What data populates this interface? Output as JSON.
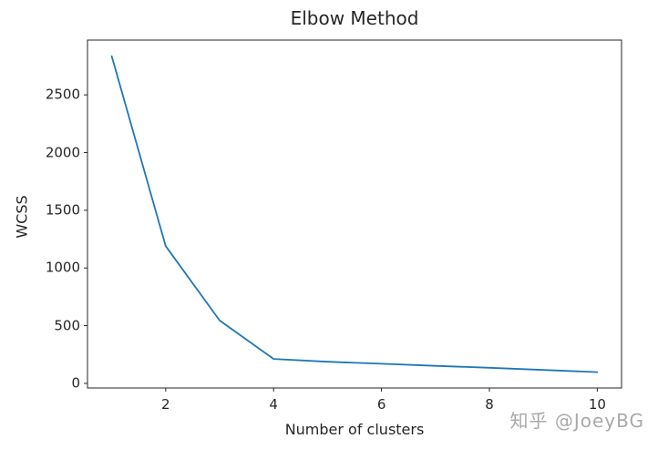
{
  "chart_data": {
    "type": "line",
    "title": "Elbow Method",
    "xlabel": "Number of clusters",
    "ylabel": "WCSS",
    "x": [
      1,
      2,
      3,
      4,
      5,
      6,
      7,
      8,
      9,
      10
    ],
    "series": [
      {
        "name": "WCSS",
        "values": [
          2835,
          1190,
          545,
          212,
          187,
          170,
          152,
          135,
          116,
          97
        ],
        "color": "#1f77b4"
      }
    ],
    "xticks": [
      2,
      4,
      6,
      8,
      10
    ],
    "yticks": [
      0,
      500,
      1000,
      1500,
      2000,
      2500
    ],
    "xlim": [
      0.55,
      10.45
    ],
    "ylim": [
      -40,
      2975
    ],
    "grid": false,
    "legend_position": "none"
  },
  "watermark": {
    "text": "知乎 @JoeyBG",
    "color": "#a9a9a9"
  },
  "colors": {
    "axis": "#262626",
    "background": "#ffffff",
    "line": "#1f77b4"
  }
}
